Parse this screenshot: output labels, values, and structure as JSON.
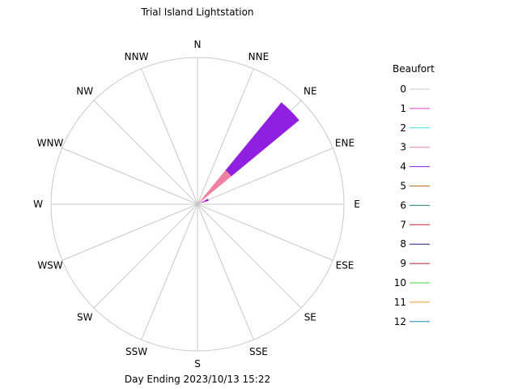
{
  "chart_data": {
    "type": "wind-rose",
    "title": "Trial Island Lightstation",
    "footer": "Day Ending 2023/10/13 15:22",
    "directions": [
      "N",
      "NNE",
      "NE",
      "ENE",
      "E",
      "ESE",
      "SE",
      "SSE",
      "S",
      "SSW",
      "SW",
      "WSW",
      "W",
      "WNW",
      "NW",
      "NNW"
    ],
    "legend": {
      "title": "Beaufort",
      "entries": [
        {
          "label": "0",
          "color": "#c8c8c8"
        },
        {
          "label": "1",
          "color": "#e040e0"
        },
        {
          "label": "2",
          "color": "#40e0e0"
        },
        {
          "label": "3",
          "color": "#f080a0"
        },
        {
          "label": "4",
          "color": "#9020e0"
        },
        {
          "label": "5",
          "color": "#c07020"
        },
        {
          "label": "6",
          "color": "#208080"
        },
        {
          "label": "7",
          "color": "#c02030"
        },
        {
          "label": "8",
          "color": "#202080"
        },
        {
          "label": "9",
          "color": "#b02030"
        },
        {
          "label": "10",
          "color": "#40e040"
        },
        {
          "label": "11",
          "color": "#e0a020"
        },
        {
          "label": "12",
          "color": "#2090c0"
        }
      ]
    },
    "max_radius_fraction": 1.0,
    "series": [
      {
        "beaufort": "0",
        "direction": "ENE",
        "start": 0.0,
        "end": 0.03
      },
      {
        "beaufort": "1",
        "direction": "ENE",
        "start": 0.03,
        "end": 0.06
      },
      {
        "beaufort": "3",
        "direction": "NE",
        "start": 0.0,
        "end": 0.3
      },
      {
        "beaufort": "4",
        "direction": "NE",
        "start": 0.3,
        "end": 0.9
      },
      {
        "beaufort": "4",
        "direction": "ENE",
        "start": 0.06,
        "end": 0.08
      }
    ]
  }
}
